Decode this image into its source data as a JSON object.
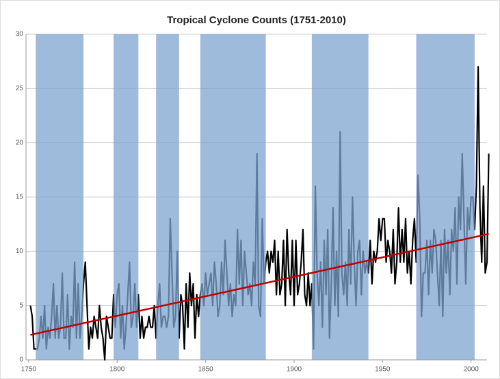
{
  "chart_data": {
    "type": "line",
    "title": "Tropical Cyclone Counts (1751-2010)",
    "x": [
      1751,
      1752,
      1753,
      1754,
      1755,
      1756,
      1757,
      1758,
      1759,
      1760,
      1761,
      1762,
      1763,
      1764,
      1765,
      1766,
      1767,
      1768,
      1769,
      1770,
      1771,
      1772,
      1773,
      1774,
      1775,
      1776,
      1777,
      1778,
      1779,
      1780,
      1781,
      1782,
      1783,
      1784,
      1785,
      1786,
      1787,
      1788,
      1789,
      1790,
      1791,
      1792,
      1793,
      1794,
      1795,
      1796,
      1797,
      1798,
      1799,
      1800,
      1801,
      1802,
      1803,
      1804,
      1805,
      1806,
      1807,
      1808,
      1809,
      1810,
      1811,
      1812,
      1813,
      1814,
      1815,
      1816,
      1817,
      1818,
      1819,
      1820,
      1821,
      1822,
      1823,
      1824,
      1825,
      1826,
      1827,
      1828,
      1829,
      1830,
      1831,
      1832,
      1833,
      1834,
      1835,
      1836,
      1837,
      1838,
      1839,
      1840,
      1841,
      1842,
      1843,
      1844,
      1845,
      1846,
      1847,
      1848,
      1849,
      1850,
      1851,
      1852,
      1853,
      1854,
      1855,
      1856,
      1857,
      1858,
      1859,
      1860,
      1861,
      1862,
      1863,
      1864,
      1865,
      1866,
      1867,
      1868,
      1869,
      1870,
      1871,
      1872,
      1873,
      1874,
      1875,
      1876,
      1877,
      1878,
      1879,
      1880,
      1881,
      1882,
      1883,
      1884,
      1885,
      1886,
      1887,
      1888,
      1889,
      1890,
      1891,
      1892,
      1893,
      1894,
      1895,
      1896,
      1897,
      1898,
      1899,
      1900,
      1901,
      1902,
      1903,
      1904,
      1905,
      1906,
      1907,
      1908,
      1909,
      1910,
      1911,
      1912,
      1913,
      1914,
      1915,
      1916,
      1917,
      1918,
      1919,
      1920,
      1921,
      1922,
      1923,
      1924,
      1925,
      1926,
      1927,
      1928,
      1929,
      1930,
      1931,
      1932,
      1933,
      1934,
      1935,
      1936,
      1937,
      1938,
      1939,
      1940,
      1941,
      1942,
      1943,
      1944,
      1945,
      1946,
      1947,
      1948,
      1949,
      1950,
      1951,
      1952,
      1953,
      1954,
      1955,
      1956,
      1957,
      1958,
      1959,
      1960,
      1961,
      1962,
      1963,
      1964,
      1965,
      1966,
      1967,
      1968,
      1969,
      1970,
      1971,
      1972,
      1973,
      1974,
      1975,
      1976,
      1977,
      1978,
      1979,
      1980,
      1981,
      1982,
      1983,
      1984,
      1985,
      1986,
      1987,
      1988,
      1989,
      1990,
      1991,
      1992,
      1993,
      1994,
      1995,
      1996,
      1997,
      1998,
      1999,
      2000,
      2001,
      2002,
      2003,
      2004,
      2005,
      2006,
      2007,
      2008,
      2009,
      2010
    ],
    "series": [
      {
        "color": "#000000",
        "values": [
          5,
          4,
          1,
          1,
          1,
          2,
          4,
          2,
          5,
          1,
          3,
          2,
          4,
          7,
          2,
          5,
          2,
          3,
          8,
          2,
          2,
          6,
          1,
          4,
          3,
          9,
          2,
          7,
          2,
          4,
          7,
          9,
          5,
          1,
          3,
          2,
          4,
          3,
          2,
          5,
          3,
          2,
          0,
          4,
          3,
          2,
          2,
          6,
          3,
          6,
          7,
          2,
          5,
          1,
          3,
          6,
          9,
          3,
          4,
          7,
          3,
          6,
          2,
          4,
          2,
          3,
          3,
          4,
          3,
          3,
          5,
          2,
          5,
          7,
          3,
          4,
          4,
          3,
          4,
          13,
          8,
          3,
          4,
          10,
          2,
          6,
          5,
          1,
          7,
          3,
          8,
          5,
          7,
          2,
          6,
          4,
          6,
          7,
          5,
          8,
          6,
          7,
          8,
          5,
          9,
          7,
          4,
          5,
          9,
          6,
          11,
          8,
          5,
          7,
          4,
          6,
          5,
          12,
          7,
          11,
          5,
          10,
          8,
          6,
          7,
          5,
          9,
          7,
          19,
          5,
          4,
          13,
          7,
          9,
          10,
          8,
          10,
          9,
          11,
          6,
          10,
          6,
          7,
          11,
          5,
          12,
          8,
          6,
          11,
          5,
          11,
          6,
          7,
          9,
          12,
          6,
          5,
          8,
          5,
          7,
          1,
          16,
          8,
          5,
          9,
          3,
          11,
          6,
          12,
          2,
          7,
          14,
          5,
          10,
          4,
          21,
          8,
          6,
          9,
          5,
          12,
          7,
          15,
          9,
          5,
          10,
          11,
          6,
          10,
          8,
          9,
          8,
          11,
          7,
          10,
          9,
          10,
          13,
          11,
          13,
          13,
          9,
          11,
          10,
          8,
          12,
          7,
          9,
          14,
          9,
          12,
          9,
          13,
          8,
          10,
          7,
          11,
          13,
          9,
          17,
          13,
          4,
          8,
          8,
          11,
          6,
          11,
          8,
          12,
          11,
          8,
          5,
          11,
          4,
          12,
          8,
          11,
          6,
          12,
          10,
          14,
          7,
          15,
          12,
          19,
          13,
          7,
          14,
          12,
          15,
          15,
          12,
          16,
          27,
          14,
          9,
          16,
          8,
          9,
          19
        ]
      }
    ],
    "trend": {
      "x": [
        1751,
        2010
      ],
      "values": [
        2.3,
        11.6
      ],
      "color": "#c00000"
    },
    "shaded_periods": [
      {
        "start": 1754,
        "end": 1781
      },
      {
        "start": 1798,
        "end": 1812
      },
      {
        "start": 1822,
        "end": 1835
      },
      {
        "start": 1847,
        "end": 1884
      },
      {
        "start": 1910,
        "end": 1942
      },
      {
        "start": 1969,
        "end": 2002
      }
    ],
    "shade_color": "#7fa4d0",
    "xlim": [
      1748.5,
      2009
    ],
    "xticks": [
      1750,
      1800,
      1850,
      1900,
      1950,
      2000
    ],
    "ylim": [
      0,
      30
    ],
    "yticks": [
      0,
      5,
      10,
      15,
      20,
      25,
      30
    ],
    "grid": true
  }
}
